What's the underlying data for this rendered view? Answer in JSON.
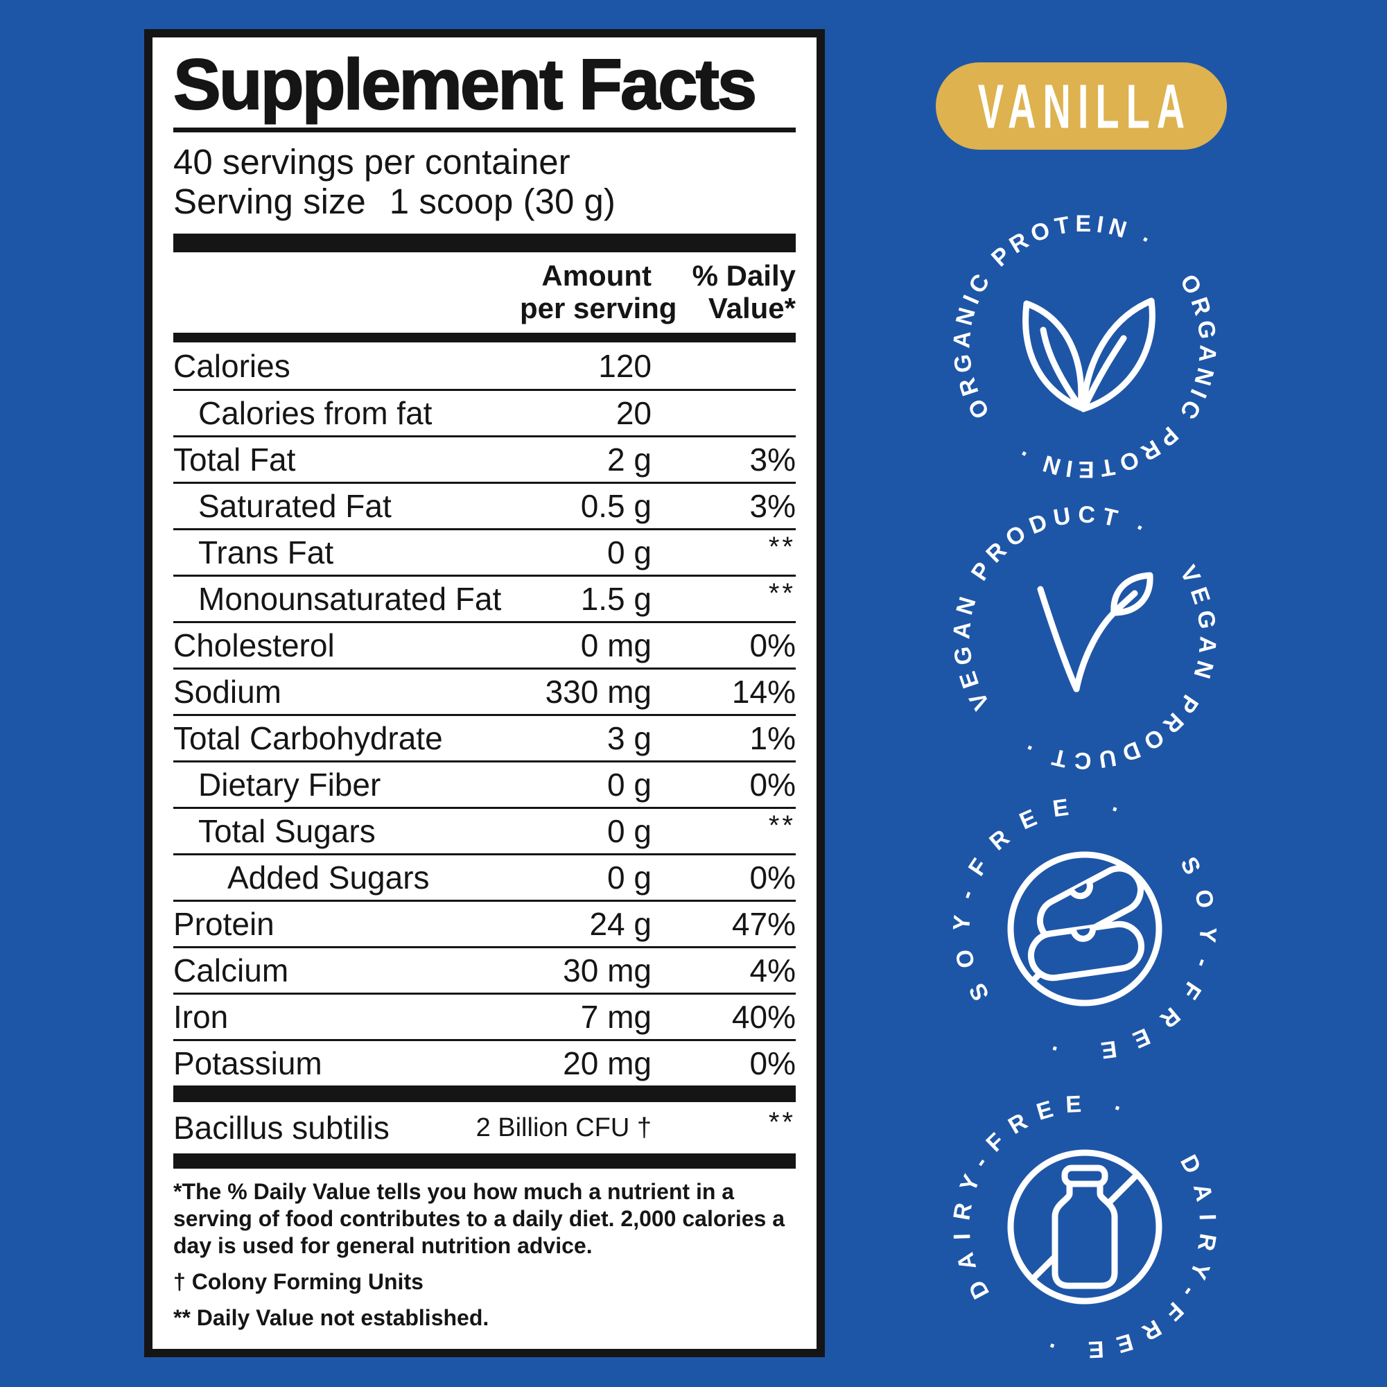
{
  "background_color": "#1E56A7",
  "ink_color": "#151515",
  "label_panel": {
    "title": "Supplement Facts",
    "servings_per_container": "40 servings per container",
    "serving_size_label": "Serving size",
    "serving_size_value": "1 scoop (30 g)",
    "header": {
      "amount_line1": "Amount",
      "amount_line2": "per serving",
      "dv_line1": "% Daily",
      "dv_line2": "Value*"
    },
    "rows": [
      {
        "name": "Calories",
        "indent": 0,
        "amount": "120",
        "dv": ""
      },
      {
        "name": "Calories from fat",
        "indent": 1,
        "amount": "20",
        "dv": ""
      },
      {
        "name": "Total Fat",
        "indent": 0,
        "amount": "2 g",
        "dv": "3%"
      },
      {
        "name": "Saturated Fat",
        "indent": 1,
        "amount": "0.5 g",
        "dv": "3%"
      },
      {
        "name": "Trans Fat",
        "indent": 1,
        "amount": "0 g",
        "dv": "**"
      },
      {
        "name": "Monounsaturated Fat",
        "indent": 1,
        "amount": "1.5 g",
        "dv": "**"
      },
      {
        "name": "Cholesterol",
        "indent": 0,
        "amount": "0 mg",
        "dv": "0%"
      },
      {
        "name": "Sodium",
        "indent": 0,
        "amount": "330 mg",
        "dv": "14%"
      },
      {
        "name": "Total Carbohydrate",
        "indent": 0,
        "amount": "3 g",
        "dv": "1%"
      },
      {
        "name": "Dietary Fiber",
        "indent": 1,
        "amount": "0 g",
        "dv": "0%"
      },
      {
        "name": "Total Sugars",
        "indent": 1,
        "amount": "0 g",
        "dv": "**"
      },
      {
        "name": "Added Sugars",
        "indent": 2,
        "amount": "0 g",
        "dv": "0%"
      },
      {
        "name": "Protein",
        "indent": 0,
        "amount": "24 g",
        "dv": "47%"
      },
      {
        "name": "Calcium",
        "indent": 0,
        "amount": "30 mg",
        "dv": "4%"
      },
      {
        "name": "Iron",
        "indent": 0,
        "amount": "7 mg",
        "dv": "40%"
      },
      {
        "name": "Potassium",
        "indent": 0,
        "amount": "20 mg",
        "dv": "0%"
      }
    ],
    "probiotic": {
      "name": "Bacillus subtilis",
      "amount": "2 Billion CFU †",
      "dv": "**"
    },
    "footnotes": [
      "*The % Daily Value tells you how much a nutrient in a serving of food contributes to a daily diet. 2,000 calories a day is used for general nutrition advice.",
      "† Colony Forming Units",
      "** Daily Value not established."
    ]
  },
  "flavor_badge": {
    "label": "VANILLA",
    "background": "#DDB24F",
    "text_color": "#FFFFFF"
  },
  "badges": [
    {
      "name": "organic-protein",
      "arc_display": "ORGANIC PROTEIN ·",
      "icon": "leaves-icon"
    },
    {
      "name": "vegan-product",
      "arc_display": "VEGAN PRODUCT ·",
      "icon": "vegan-leaf-check-icon"
    },
    {
      "name": "soy-free",
      "arc_display": "SOY-FREE ·",
      "icon": "crossed-soybeans-icon"
    },
    {
      "name": "dairy-free",
      "arc_display": "DAIRY-FREE ·",
      "icon": "crossed-milk-bottle-icon"
    }
  ]
}
